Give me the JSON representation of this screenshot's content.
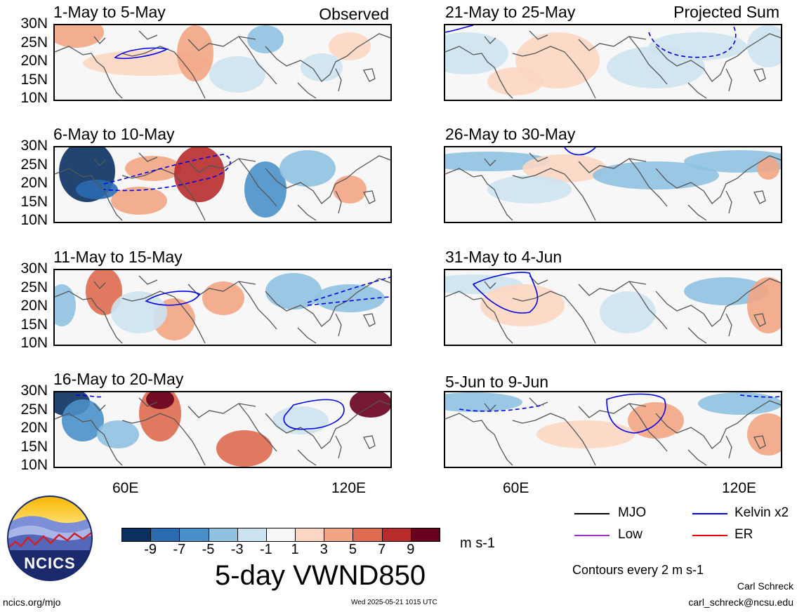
{
  "panels_left": [
    {
      "title": "1-May to 5-May",
      "tag": "Observed"
    },
    {
      "title": "6-May to 10-May",
      "tag": ""
    },
    {
      "title": "11-May to 15-May",
      "tag": ""
    },
    {
      "title": "16-May to 20-May",
      "tag": ""
    }
  ],
  "panels_right": [
    {
      "title": "21-May to 25-May",
      "tag": "Projected Sum"
    },
    {
      "title": "26-May to 30-May",
      "tag": ""
    },
    {
      "title": "31-May to 4-Jun",
      "tag": ""
    },
    {
      "title": "5-Jun to 9-Jun",
      "tag": ""
    }
  ],
  "lat_labels": [
    "30N",
    "25N",
    "20N",
    "15N",
    "10N"
  ],
  "lon_labels": [
    "60E",
    "120E"
  ],
  "colorbar": {
    "colors": [
      "#0a3060",
      "#2b6cb0",
      "#4a90c8",
      "#8fc1e0",
      "#cde3f1",
      "#f7f7f7",
      "#fbd6c2",
      "#f2a584",
      "#de6a50",
      "#b72b2b",
      "#67001f"
    ],
    "labels": [
      "-9",
      "-7",
      "-5",
      "-3",
      "-1",
      "1",
      "3",
      "5",
      "7",
      "9"
    ],
    "units": "m s-1"
  },
  "main_title": "5-day VWND850",
  "legend": {
    "items": [
      {
        "label": "MJO",
        "color": "#000000"
      },
      {
        "label": "Kelvin x2",
        "color": "#0000ee"
      },
      {
        "label": "Low",
        "color": "#9932cc"
      },
      {
        "label": "ER",
        "color": "#ee0000"
      }
    ],
    "contour_note": "Contours every 2 m s-1"
  },
  "logo": {
    "text": "NCICS"
  },
  "footer": {
    "left": "ncics.org/mjo",
    "center": "Wed 2025-05-21 1015 UTC",
    "author": "Carl Schreck",
    "email": "carl_schreck@ncsu.edu"
  }
}
